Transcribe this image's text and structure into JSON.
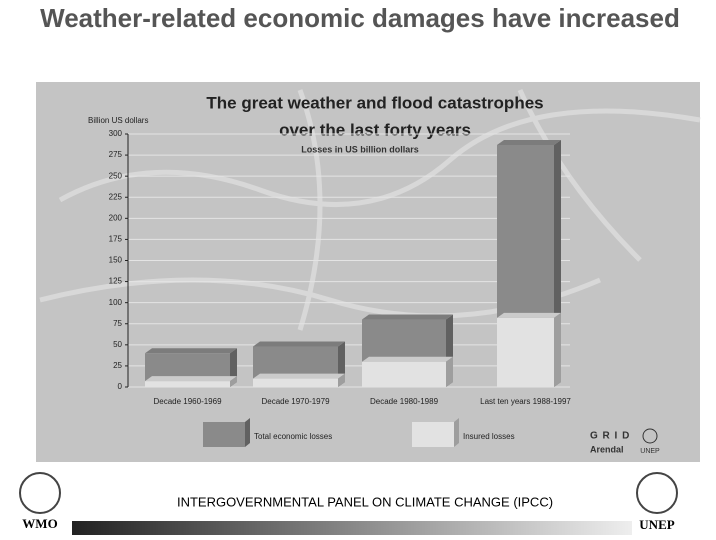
{
  "header": {
    "title": "Weather-related economic damages have increased"
  },
  "chart_data": {
    "type": "bar",
    "title": [
      "The great weather and flood catastrophes",
      "over the last forty years"
    ],
    "subtitle": "Losses in US billion dollars",
    "y_label": "Billion US dollars",
    "categories": [
      "Decade 1960-1969",
      "Decade 1970-1979",
      "Decade 1980-1989",
      "Last ten years 1988-1997"
    ],
    "series": [
      {
        "name": "Total economic losses",
        "color": "#8a8a8a",
        "values": [
          40,
          48,
          80,
          287
        ]
      },
      {
        "name": "Insured losses",
        "color": "#e2e2e2",
        "values": [
          7,
          10,
          30,
          82
        ]
      }
    ],
    "ylim": [
      0,
      300
    ],
    "yticks": [
      0,
      25,
      50,
      75,
      100,
      125,
      150,
      175,
      200,
      225,
      250,
      275,
      300
    ],
    "grid": true
  },
  "logos": {
    "grid": "G R I D",
    "arendal": "Arendal",
    "unep_small": "UNEP"
  },
  "footer": {
    "text": "INTERGOVERNMENTAL PANEL ON CLIMATE CHANGE (IPCC)",
    "left_logo": "WMO",
    "right_logo": "UNEP"
  }
}
